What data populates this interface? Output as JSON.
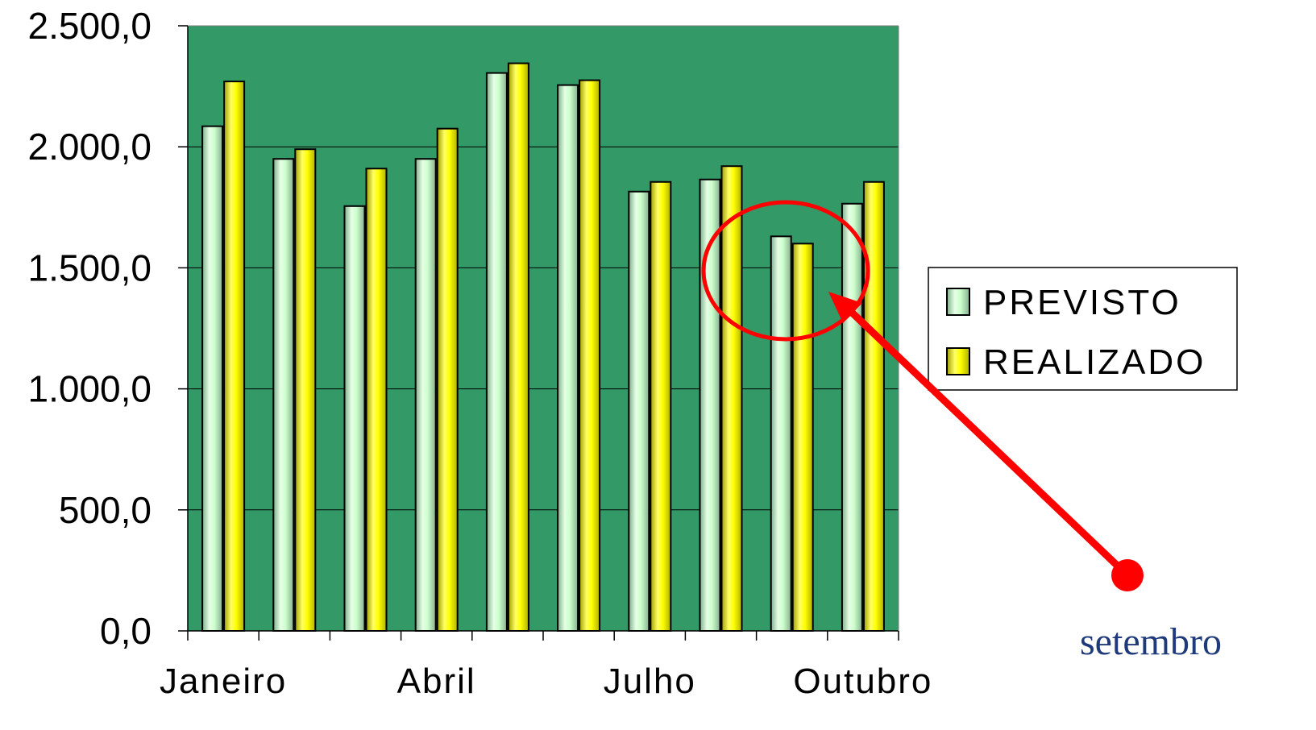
{
  "chart_data": {
    "type": "bar",
    "title": "",
    "xlabel": "",
    "ylabel": "",
    "ylim": [
      0,
      2500
    ],
    "yticks": [
      "0,0",
      "500,0",
      "1.000,0",
      "1.500,0",
      "2.000,0",
      "2.500,0"
    ],
    "ytick_values": [
      0,
      500,
      1000,
      1500,
      2000,
      2500
    ],
    "categories": [
      "Janeiro",
      "",
      "",
      "Abril",
      "",
      "",
      "Julho",
      "",
      "",
      "Outubro"
    ],
    "series": [
      {
        "name": "PREVISTO",
        "values": [
          2085,
          1950,
          1755,
          1950,
          2305,
          2255,
          1815,
          1865,
          1630,
          1765
        ]
      },
      {
        "name": "REALIZADO",
        "values": [
          2270,
          1990,
          1910,
          2075,
          2345,
          2275,
          1855,
          1920,
          1600,
          1855
        ]
      }
    ],
    "legend": {
      "placement": "right",
      "entries": [
        "PREVISTO",
        "REALIZADO"
      ]
    },
    "grid": true,
    "colors": {
      "plot_background": "#339966",
      "gridline": "#000000",
      "previsto": "#ccffcc",
      "realizado": "#ffff00",
      "annotation": "#ff0000",
      "annotation_text": "#1f3a7a"
    },
    "annotation": {
      "text": "setembro",
      "highlight_category_index": 8
    }
  }
}
